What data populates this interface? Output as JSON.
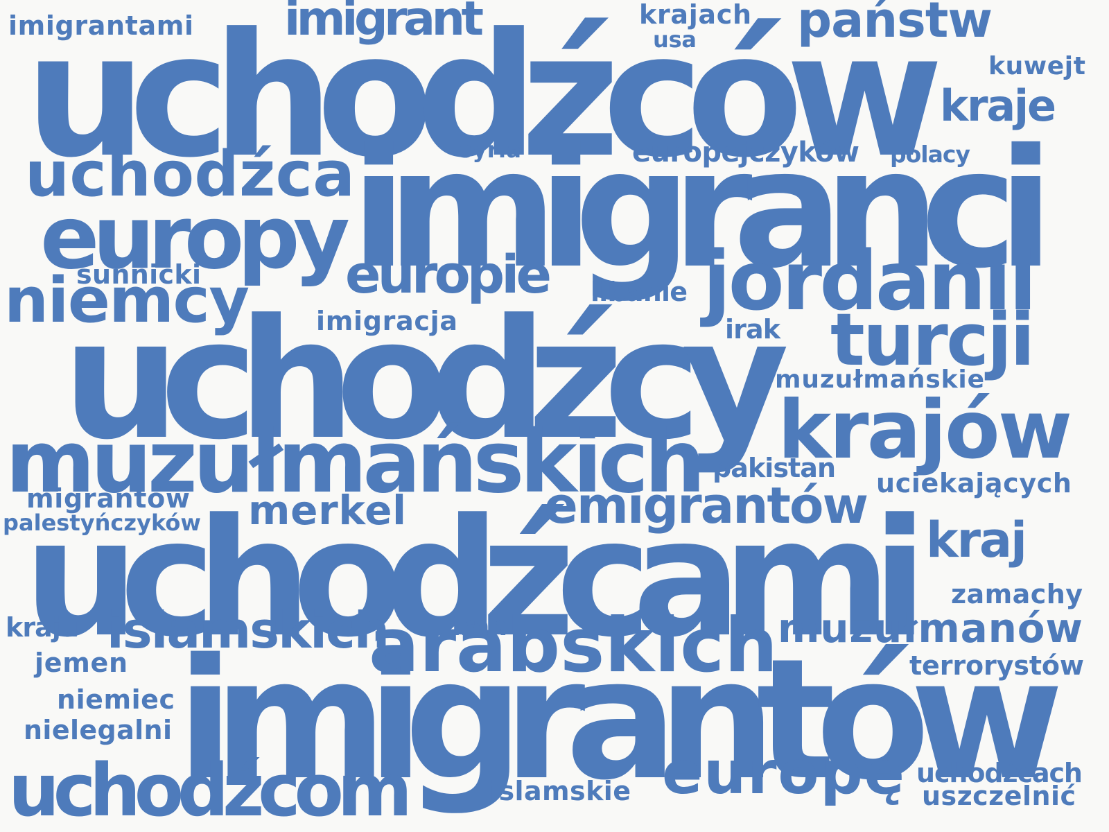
{
  "word_color": "#4e7bbb",
  "background_color": "#f9f9f7",
  "words": [
    "uchodźców",
    "imigranci",
    "uchodźcy",
    "uchodźcami",
    "imigrantów",
    "muzułmańskich",
    "europy",
    "uchodźca",
    "jordanii",
    "krajów",
    "niemcy",
    "turcji",
    "uchodźcom",
    "arabskich",
    "europę",
    "imigrant",
    "państw",
    "europie",
    "emigrantów",
    "islamskich",
    "muzułmanów",
    "kraje",
    "kraj",
    "merkel",
    "imigrantami",
    "krajach",
    "usa",
    "kuwejt",
    "syria",
    "europejczyków",
    "polacy",
    "sunnicki",
    "libanie",
    "imigracja",
    "irak",
    "muzułmańskie",
    "pakistan",
    "uciekających",
    "migrantów",
    "palestyńczyków",
    "zamachy",
    "kraju",
    "iran",
    "jemen",
    "terrorystów",
    "niemiec",
    "nielegalni",
    "islamskie",
    "uchodźcach",
    "uszczelnić"
  ]
}
